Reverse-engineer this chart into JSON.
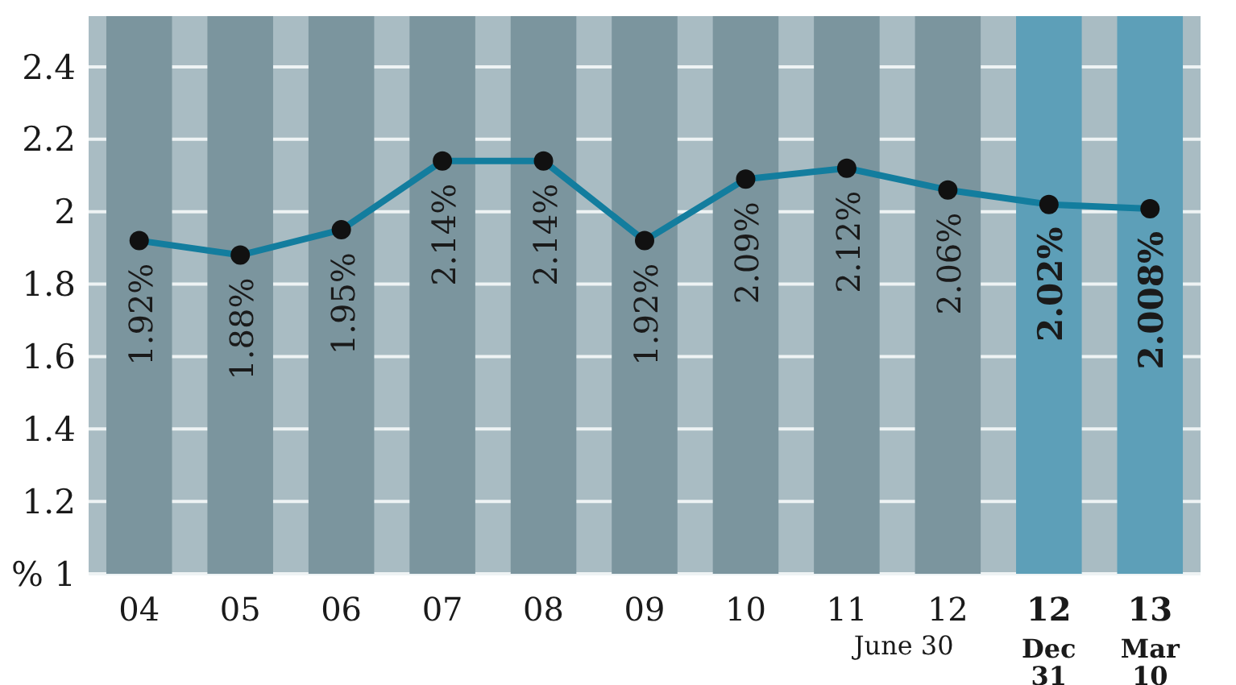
{
  "chart_data": {
    "type": "line",
    "categories": [
      "04",
      "05",
      "06",
      "07",
      "08",
      "09",
      "10",
      "11",
      "12",
      "12\nDec\n31",
      "13\nMar\n10"
    ],
    "series": [
      {
        "color": "#137d9e",
        "values": [
          1.92,
          1.88,
          1.95,
          2.14,
          2.14,
          1.92,
          2.09,
          2.12,
          2.06,
          2.02,
          2.008
        ],
        "value_labels": [
          "1.92%",
          "1.88%",
          "1.95%",
          "2.14%",
          "2.14%",
          "1.92%",
          "2.09%",
          "2.12%",
          "2.06%",
          "2.02%",
          "2.008%"
        ]
      }
    ],
    "ylim": [
      1,
      2.54
    ],
    "yticks": [
      {
        "value": 1,
        "label": "% 1"
      },
      1.2,
      1.4,
      1.6,
      1.8,
      2,
      2.2,
      2.4
    ],
    "grid": "y",
    "marker": "circle",
    "line_style": "solid",
    "bands": [
      {
        "axis": "x",
        "from": "04",
        "to": "04",
        "color": "#7b959e"
      },
      {
        "axis": "x",
        "from": "05",
        "to": "05",
        "color": "#7b959e"
      },
      {
        "axis": "x",
        "from": "06",
        "to": "06",
        "color": "#7b959e"
      },
      {
        "axis": "x",
        "from": "07",
        "to": "07",
        "color": "#7b959e"
      },
      {
        "axis": "x",
        "from": "08",
        "to": "08",
        "color": "#7b959e"
      },
      {
        "axis": "x",
        "from": "09",
        "to": "09",
        "color": "#7b959e"
      },
      {
        "axis": "x",
        "from": "10",
        "to": "10",
        "color": "#7b959e"
      },
      {
        "axis": "x",
        "from": "11",
        "to": "11",
        "color": "#7b959e"
      },
      {
        "axis": "x",
        "from": "12",
        "to": "12",
        "color": "#7b959e"
      },
      {
        "axis": "x",
        "from": "12\nDec\n31",
        "to": "12\nDec\n31",
        "color": "#5d9fb8"
      },
      {
        "axis": "x",
        "from": "13\nMar\n10",
        "to": "13\nMar\n10",
        "color": "#5d9fb8"
      }
    ],
    "annotations": [
      "June 30"
    ]
  }
}
